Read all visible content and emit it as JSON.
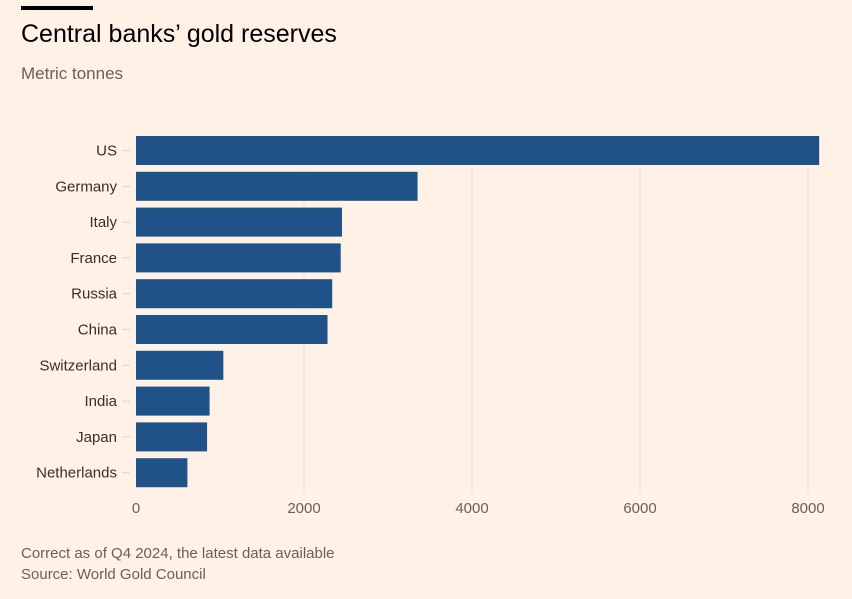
{
  "chart_data": {
    "type": "bar",
    "orientation": "horizontal",
    "title": "Central banks’ gold reserves",
    "subtitle": "Metric tonnes",
    "categories": [
      "US",
      "Germany",
      "Italy",
      "France",
      "Russia",
      "China",
      "Switzerland",
      "India",
      "Japan",
      "Netherlands"
    ],
    "values": [
      8133,
      3352,
      2452,
      2437,
      2336,
      2280,
      1040,
      876,
      846,
      612
    ],
    "xlim": [
      0,
      8000
    ],
    "xticks": [
      0,
      2000,
      4000,
      6000,
      8000
    ],
    "xlabel": "",
    "ylabel": "",
    "grid": true,
    "bar_color": "#1F5289"
  },
  "footer": {
    "note": "Correct as of Q4 2024, the latest data available",
    "source": "Source: World Gold Council"
  }
}
